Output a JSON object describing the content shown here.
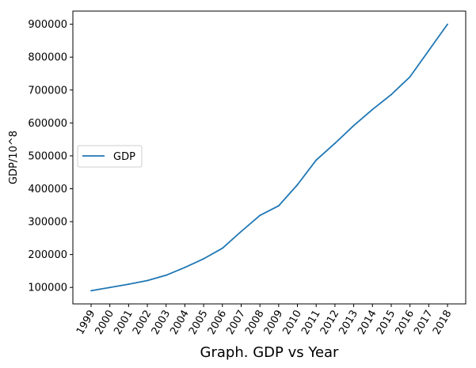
{
  "chart_data": {
    "type": "line",
    "xlabel": "Graph. GDP vs Year",
    "ylabel": "GDP/10^8",
    "categories": [
      "1999",
      "2000",
      "2001",
      "2002",
      "2003",
      "2004",
      "2005",
      "2006",
      "2007",
      "2008",
      "2009",
      "2010",
      "2011",
      "2012",
      "2013",
      "2014",
      "2015",
      "2016",
      "2017",
      "2018"
    ],
    "series": [
      {
        "name": "GDP",
        "color": "#1f77b4",
        "values": [
          90000,
          100000,
          110000,
          121000,
          137000,
          161000,
          187000,
          219000,
          270000,
          319000,
          348000,
          412000,
          487000,
          538000,
          592000,
          641000,
          686000,
          740000,
          820000,
          900000
        ]
      }
    ],
    "ylim": [
      50000,
      940000
    ],
    "yticks": [
      100000,
      200000,
      300000,
      400000,
      500000,
      600000,
      700000,
      800000,
      900000
    ],
    "ytick_labels": [
      "100000",
      "200000",
      "300000",
      "400000",
      "500000",
      "600000",
      "700000",
      "800000",
      "900000"
    ],
    "x_tick_rotation": -60,
    "grid": false,
    "legend_position": "center-left"
  }
}
